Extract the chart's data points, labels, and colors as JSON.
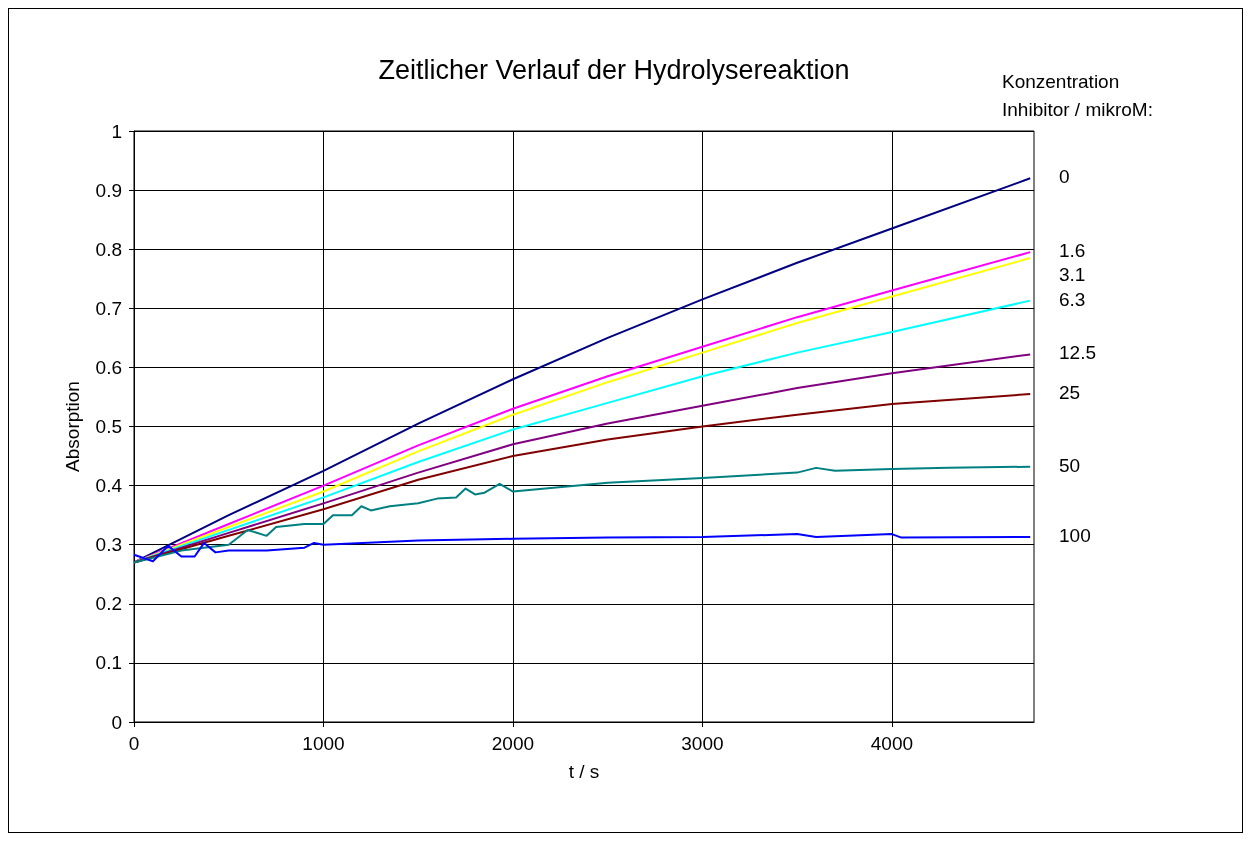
{
  "chart_data": {
    "type": "line",
    "title": "Zeitlicher Verlauf der Hydrolysereaktion",
    "xlabel": "t / s",
    "ylabel": "Absorption",
    "legend_title": "Konzentration\nInhibitor / mikroM:",
    "xlim": [
      0,
      4750
    ],
    "xticks": [
      0,
      1000,
      2000,
      3000,
      4000
    ],
    "ylim": [
      0,
      1
    ],
    "yticks": [
      0,
      0.1,
      0.2,
      0.3,
      0.4,
      0.5,
      0.6,
      0.7,
      0.8,
      0.9,
      1
    ],
    "grid": true,
    "marker": "none",
    "line_style": "solid",
    "series": [
      {
        "name": "0",
        "color": "#000080",
        "x": [
          0,
          500,
          1000,
          1500,
          2000,
          2500,
          3000,
          3500,
          4000,
          4730
        ],
        "values": [
          0.27,
          0.35,
          0.425,
          0.505,
          0.58,
          0.65,
          0.715,
          0.777,
          0.835,
          0.92
        ]
      },
      {
        "name": "1.6",
        "color": "#ff00ff",
        "x": [
          0,
          500,
          1000,
          1500,
          2000,
          2500,
          3000,
          3500,
          4000,
          4730
        ],
        "values": [
          0.27,
          0.335,
          0.4,
          0.468,
          0.53,
          0.585,
          0.635,
          0.685,
          0.73,
          0.795
        ]
      },
      {
        "name": "3.1",
        "color": "#ffff00",
        "x": [
          0,
          500,
          1000,
          1500,
          2000,
          2500,
          3000,
          3500,
          4000,
          4730
        ],
        "values": [
          0.27,
          0.33,
          0.39,
          0.458,
          0.52,
          0.575,
          0.625,
          0.675,
          0.72,
          0.785
        ]
      },
      {
        "name": "6.3",
        "color": "#00ffff",
        "x": [
          0,
          500,
          1000,
          1500,
          2000,
          2500,
          3000,
          3500,
          4000,
          4730
        ],
        "values": [
          0.27,
          0.325,
          0.38,
          0.44,
          0.495,
          0.54,
          0.585,
          0.625,
          0.66,
          0.713
        ]
      },
      {
        "name": "12.5",
        "color": "#800080",
        "x": [
          0,
          500,
          1000,
          1500,
          2000,
          2500,
          3000,
          3500,
          4000,
          4730
        ],
        "values": [
          0.27,
          0.32,
          0.37,
          0.422,
          0.47,
          0.505,
          0.535,
          0.565,
          0.59,
          0.622
        ]
      },
      {
        "name": "25",
        "color": "#800000",
        "x": [
          0,
          500,
          1000,
          1500,
          2000,
          2500,
          3000,
          3500,
          4000,
          4730
        ],
        "values": [
          0.27,
          0.315,
          0.36,
          0.41,
          0.45,
          0.478,
          0.5,
          0.52,
          0.538,
          0.555
        ]
      },
      {
        "name": "50",
        "color": "#008080",
        "x": [
          0,
          250,
          500,
          600,
          700,
          750,
          900,
          1000,
          1050,
          1150,
          1200,
          1250,
          1350,
          1500,
          1600,
          1700,
          1750,
          1800,
          1850,
          1930,
          2000,
          2500,
          3000,
          3500,
          3600,
          3700,
          4000,
          4300,
          4730
        ],
        "values": [
          0.27,
          0.29,
          0.3,
          0.325,
          0.315,
          0.33,
          0.335,
          0.335,
          0.35,
          0.35,
          0.365,
          0.358,
          0.365,
          0.37,
          0.378,
          0.38,
          0.395,
          0.385,
          0.388,
          0.403,
          0.39,
          0.405,
          0.413,
          0.422,
          0.43,
          0.425,
          0.428,
          0.43,
          0.432
        ]
      },
      {
        "name": "100",
        "color": "#0000ff",
        "x": [
          0,
          100,
          180,
          250,
          320,
          370,
          430,
          500,
          700,
          900,
          950,
          1000,
          1500,
          2000,
          2500,
          3000,
          3500,
          3600,
          4000,
          4050,
          4730
        ],
        "values": [
          0.283,
          0.272,
          0.298,
          0.28,
          0.28,
          0.303,
          0.287,
          0.29,
          0.29,
          0.295,
          0.303,
          0.3,
          0.307,
          0.31,
          0.312,
          0.313,
          0.318,
          0.313,
          0.318,
          0.312,
          0.313
        ]
      }
    ]
  }
}
